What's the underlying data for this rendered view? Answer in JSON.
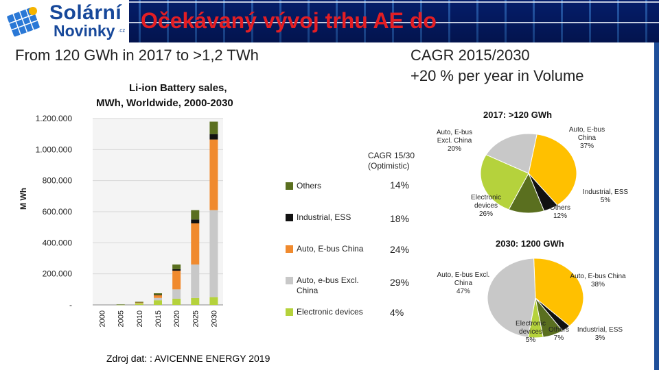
{
  "header": {
    "logo_line1": "Solární",
    "logo_line2": "Novinky",
    "logo_suffix": ".cz",
    "title": "Očekávaný vývoj trhu AE do"
  },
  "headline_left": "From 120 GWh in 2017 to >1,2 TWh",
  "headline_right_1": "CAGR 2015/2030",
  "headline_right_2": "+20 % per year in Volume",
  "source": "Zdroj dat: : AVICENNE ENERGY 2019",
  "colors": {
    "others": "#5a6f1f",
    "industrial": "#111111",
    "auto_china": "#f08a2e",
    "auto_excl": "#c8c8c8",
    "electronic": "#b5d23c",
    "pie_auto_china": "#ffc000",
    "title_red": "#e31e24",
    "logo_blue": "#17489a"
  },
  "chart_data": [
    {
      "type": "bar",
      "stacked": true,
      "title_line1": "Li-ion Battery sales,",
      "title_line2": "MWh, Worldwide, 2000-2030",
      "ylabel": "M Wh",
      "ylim": [
        0,
        1200000
      ],
      "y_ticks": [
        "-",
        "200.000",
        "400.000",
        "600.000",
        "800.000",
        "1.000.000",
        "1.200.000"
      ],
      "categories": [
        "2000",
        "2005",
        "2010",
        "2015",
        "2020",
        "2025",
        "2030"
      ],
      "series": [
        {
          "name": "Electronic devices",
          "values": [
            0,
            2000,
            10000,
            30000,
            40000,
            45000,
            50000
          ]
        },
        {
          "name": "Auto, e-bus Excl. China",
          "values": [
            0,
            0,
            3000,
            15000,
            60000,
            215000,
            560000
          ]
        },
        {
          "name": "Auto, E-bus China",
          "values": [
            0,
            0,
            2000,
            18000,
            120000,
            265000,
            455000
          ]
        },
        {
          "name": "Industrial, ESS",
          "values": [
            0,
            0,
            0,
            3000,
            10000,
            25000,
            35000
          ]
        },
        {
          "name": "Others",
          "values": [
            0,
            1000,
            5000,
            9000,
            30000,
            60000,
            80000
          ]
        }
      ],
      "legend_title": "CAGR 15/30 (Optimistic)",
      "legend": [
        {
          "name": "Others",
          "cagr": "14%"
        },
        {
          "name": "Industrial, ESS",
          "cagr": "18%"
        },
        {
          "name": "Auto, E-bus China",
          "cagr": "24%"
        },
        {
          "name": "Auto, e-bus Excl. China",
          "cagr": "29%"
        },
        {
          "name": "Electronic devices",
          "cagr": "4%"
        }
      ]
    },
    {
      "type": "pie",
      "title": "2017: >120 GWh",
      "slices": [
        {
          "label": "Auto, E-bus China",
          "value": 37,
          "text": "37%"
        },
        {
          "label": "Industrial, ESS",
          "value": 5,
          "text": "5%"
        },
        {
          "label": "Others",
          "value": 12,
          "text": "12%"
        },
        {
          "label": "Electronic devices",
          "value": 26,
          "text": "26%"
        },
        {
          "label": "Auto, E-bus Excl. China",
          "value": 20,
          "text": "20%"
        }
      ]
    },
    {
      "type": "pie",
      "title": "2030: 1200 GWh",
      "slices": [
        {
          "label": "Auto, E-bus China",
          "value": 38,
          "text": "38%"
        },
        {
          "label": "Industrial, ESS",
          "value": 3,
          "text": "3%"
        },
        {
          "label": "Others",
          "value": 7,
          "text": "7%"
        },
        {
          "label": "Electronic devices",
          "value": 5,
          "text": "5%"
        },
        {
          "label": "Auto, E-bus Excl. China",
          "value": 47,
          "text": "47%"
        }
      ]
    }
  ],
  "pie_labels_2017": {
    "auto_excl_1": "Auto, E-bus",
    "auto_excl_2": "Excl. China",
    "auto_china_1": "Auto, E-bus",
    "auto_china_2": "China",
    "industrial": "Industrial, ESS",
    "electronic_1": "Electronic",
    "electronic_2": "devices",
    "others": "Others"
  },
  "pie_labels_2030": {
    "auto_excl_1": "Auto, E-bus Excl.",
    "auto_excl_2": "China",
    "auto_china": "Auto, E-bus China",
    "electronic_1": "Electronic",
    "electronic_2": "devices",
    "others": "Others",
    "industrial": "Industrial, ESS"
  }
}
